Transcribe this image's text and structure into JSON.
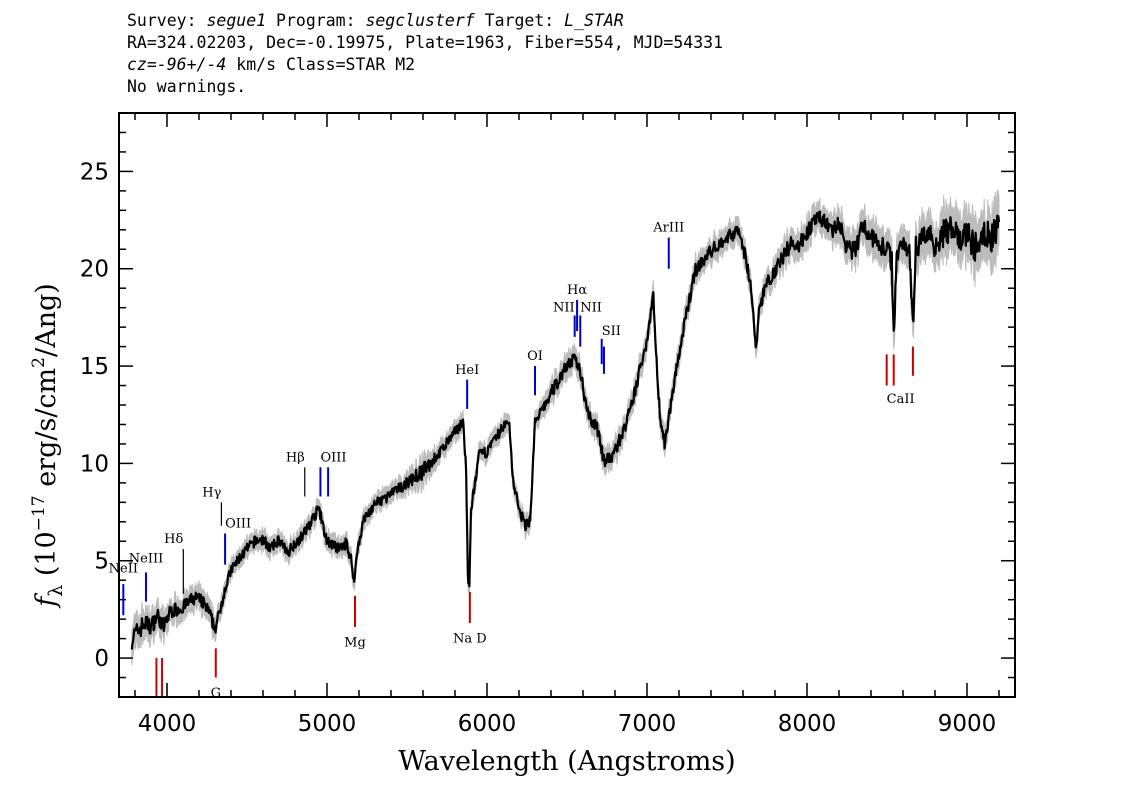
{
  "header": {
    "line1": {
      "survey_label": "Survey: ",
      "survey": "segue1",
      "program_label": " Program: ",
      "program": "segclusterf",
      "target_label": " Target: ",
      "target": "L_STAR"
    },
    "line2": "RA=324.02203, Dec=-0.19975, Plate=1963, Fiber=554, MJD=54331",
    "line3": {
      "cz": "cz=-96+/-4",
      "rest": " km/s Class=STAR M2"
    },
    "line4": "No warnings."
  },
  "chart_data": {
    "type": "line",
    "xlabel": "Wavelength (Angstroms)",
    "ylabel": "f_λ (10^-17 erg/s/cm^2/Ang)",
    "xlim": [
      3700,
      9300
    ],
    "ylim": [
      -2,
      28
    ],
    "x_ticks": [
      4000,
      5000,
      6000,
      7000,
      8000,
      9000
    ],
    "y_ticks": [
      0,
      5,
      10,
      15,
      20,
      25
    ],
    "grid": false,
    "colors": {
      "spectrum": "#000000",
      "error_band": "#bcbcbc",
      "emission_line": "#0000cc",
      "absorption_line": "#cc0000",
      "balmer_line": "#000000"
    },
    "spectrum": {
      "x": [
        3780,
        3820,
        3860,
        3900,
        3940,
        3980,
        4020,
        4060,
        4100,
        4140,
        4180,
        4220,
        4260,
        4300,
        4330,
        4360,
        4400,
        4450,
        4500,
        4550,
        4600,
        4650,
        4700,
        4750,
        4800,
        4850,
        4900,
        4950,
        4990,
        5030,
        5080,
        5120,
        5150,
        5170,
        5190,
        5230,
        5300,
        5400,
        5500,
        5600,
        5700,
        5800,
        5850,
        5870,
        5880,
        5890,
        5900,
        5950,
        6000,
        6050,
        6100,
        6140,
        6160,
        6200,
        6240,
        6270,
        6300,
        6350,
        6400,
        6450,
        6500,
        6550,
        6580,
        6620,
        6660,
        6700,
        6730,
        6780,
        6850,
        6900,
        6950,
        7000,
        7040,
        7060,
        7080,
        7110,
        7130,
        7150,
        7200,
        7250,
        7300,
        7400,
        7500,
        7580,
        7620,
        7650,
        7680,
        7700,
        7750,
        7800,
        7850,
        7900,
        7950,
        8000,
        8050,
        8100,
        8150,
        8200,
        8250,
        8300,
        8350,
        8400,
        8450,
        8500,
        8530,
        8542,
        8560,
        8600,
        8640,
        8662,
        8680,
        8720,
        8760,
        8800,
        8850,
        8900,
        8950,
        9000,
        9050,
        9100,
        9150,
        9200
      ],
      "y": [
        1.0,
        1.4,
        1.8,
        1.6,
        2.2,
        1.6,
        2.4,
        2.5,
        2.6,
        2.9,
        3.1,
        2.9,
        2.4,
        1.5,
        2.4,
        3.5,
        4.5,
        5.1,
        5.6,
        6.0,
        6.1,
        5.6,
        6.1,
        5.4,
        5.9,
        6.3,
        7.0,
        7.7,
        6.2,
        5.8,
        5.6,
        5.9,
        5.1,
        3.9,
        5.6,
        7.1,
        7.9,
        8.4,
        9.0,
        9.6,
        10.5,
        11.6,
        12.2,
        9.6,
        4.1,
        3.6,
        7.6,
        10.4,
        10.6,
        11.2,
        11.9,
        12.1,
        9.3,
        7.6,
        6.8,
        7.1,
        12.1,
        12.8,
        13.6,
        14.3,
        15.1,
        15.3,
        14.9,
        13.0,
        12.1,
        11.6,
        10.1,
        10.3,
        11.6,
        12.8,
        14.6,
        16.4,
        18.7,
        15.1,
        12.6,
        11.0,
        12.1,
        13.1,
        15.6,
        17.8,
        19.9,
        20.9,
        21.6,
        22.0,
        20.4,
        19.1,
        15.8,
        17.9,
        19.3,
        19.9,
        20.6,
        21.3,
        21.2,
        21.9,
        22.4,
        22.6,
        21.9,
        22.3,
        21.1,
        20.9,
        22.3,
        21.6,
        21.3,
        21.0,
        20.4,
        16.6,
        20.6,
        21.4,
        21.1,
        16.9,
        21.1,
        21.6,
        21.9,
        21.2,
        21.8,
        22.1,
        21.4,
        21.9,
        21.0,
        22.1,
        21.5,
        22.4
      ],
      "error": [
        0.8,
        0.7,
        0.7,
        0.6,
        0.6,
        0.6,
        0.5,
        0.5,
        0.5,
        0.5,
        0.5,
        0.5,
        0.5,
        0.5,
        0.4,
        0.4,
        0.4,
        0.4,
        0.4,
        0.4,
        0.4,
        0.4,
        0.4,
        0.4,
        0.4,
        0.4,
        0.4,
        0.4,
        0.4,
        0.4,
        0.4,
        0.4,
        0.4,
        0.4,
        0.4,
        0.4,
        0.4,
        0.4,
        0.4,
        0.6,
        0.4,
        0.4,
        0.4,
        0.4,
        0.4,
        0.4,
        0.4,
        0.4,
        0.4,
        0.4,
        0.4,
        0.4,
        0.4,
        0.4,
        0.4,
        0.4,
        0.4,
        0.4,
        0.5,
        0.5,
        0.5,
        0.5,
        0.5,
        0.5,
        0.5,
        0.5,
        0.5,
        0.5,
        0.5,
        0.5,
        0.5,
        0.5,
        0.5,
        0.5,
        0.5,
        0.5,
        0.5,
        0.5,
        0.5,
        0.5,
        0.5,
        0.5,
        0.5,
        0.5,
        0.5,
        0.5,
        0.5,
        0.5,
        0.5,
        0.5,
        0.6,
        0.6,
        0.6,
        0.6,
        0.6,
        0.6,
        0.6,
        0.7,
        0.7,
        0.7,
        0.7,
        0.7,
        0.8,
        0.8,
        0.8,
        0.8,
        0.8,
        0.8,
        0.8,
        0.8,
        0.9,
        0.9,
        0.9,
        0.9,
        1.0,
        1.0,
        1.0,
        1.0,
        1.1,
        1.1,
        1.1,
        1.2
      ]
    },
    "lines": [
      {
        "label": "NeII",
        "x": 3727,
        "color": "blue",
        "y0": 2.2,
        "y1": 3.8,
        "labelY": 4.4,
        "anchor": "middle"
      },
      {
        "label": "NeIII",
        "x": 3869,
        "color": "blue",
        "y0": 2.9,
        "y1": 4.4,
        "labelY": 4.9,
        "anchor": "middle"
      },
      {
        "label": "Hδ",
        "x": 4102,
        "color": "black",
        "y0": 3.3,
        "y1": 5.6,
        "labelY": 5.9,
        "anchor": "end"
      },
      {
        "label": "Hγ",
        "x": 4340,
        "color": "black",
        "y0": 6.8,
        "y1": 8.0,
        "labelY": 8.3,
        "anchor": "end"
      },
      {
        "label": "OIII",
        "x": 4363,
        "color": "blue",
        "y0": 4.8,
        "y1": 6.4,
        "labelY": 6.7,
        "anchor": "start"
      },
      {
        "label": "Hβ",
        "x": 4861,
        "color": "black",
        "y0": 8.3,
        "y1": 9.8,
        "labelY": 10.1,
        "anchor": "end"
      },
      {
        "label": "OIII",
        "x": 4959,
        "color": "blue",
        "y0": 8.3,
        "y1": 9.8,
        "labelY": 10.1,
        "anchor": "start"
      },
      {
        "label": "",
        "x": 5007,
        "color": "blue",
        "y0": 8.3,
        "y1": 9.8
      },
      {
        "label": "HeI",
        "x": 5876,
        "color": "blue",
        "y0": 12.8,
        "y1": 14.3,
        "labelY": 14.6,
        "anchor": "middle"
      },
      {
        "label": "OI",
        "x": 6300,
        "color": "blue",
        "y0": 13.5,
        "y1": 15.0,
        "labelY": 15.3,
        "anchor": "middle"
      },
      {
        "label": "NII",
        "x": 6548,
        "color": "blue",
        "y0": 16.5,
        "y1": 17.6,
        "labelY": 17.8,
        "anchor": "end"
      },
      {
        "label": "Hα",
        "x": 6563,
        "color": "blue",
        "y0": 16.8,
        "y1": 18.4,
        "labelY": 18.7,
        "anchor": "middle"
      },
      {
        "label": "NII",
        "x": 6583,
        "color": "blue",
        "y0": 16.0,
        "y1": 17.6,
        "labelY": 17.8,
        "anchor": "start"
      },
      {
        "label": "SII",
        "x": 6717,
        "color": "blue",
        "y0": 15.1,
        "y1": 16.4,
        "labelY": 16.6,
        "anchor": "start"
      },
      {
        "label": "",
        "x": 6731,
        "color": "blue",
        "y0": 14.6,
        "y1": 16.0
      },
      {
        "label": "ArIII",
        "x": 7136,
        "color": "blue",
        "y0": 20.0,
        "y1": 21.6,
        "labelY": 21.9,
        "anchor": "middle"
      },
      {
        "label": "Mg",
        "x": 5175,
        "color": "red",
        "y0": 3.2,
        "y1": 1.6,
        "labelY": 0.6,
        "anchor": "middle"
      },
      {
        "label": "Na D",
        "x": 5893,
        "color": "red",
        "y0": 3.4,
        "y1": 1.8,
        "labelY": 0.8,
        "anchor": "middle"
      },
      {
        "label": "G",
        "x": 4305,
        "color": "red",
        "y0": 0.5,
        "y1": -1.0,
        "labelY": -2.0,
        "anchor": "middle"
      },
      {
        "label": "",
        "x": 3934,
        "color": "red",
        "y0": 0.0,
        "y1": -2.0
      },
      {
        "label": "",
        "x": 3969,
        "color": "red",
        "y0": 0.0,
        "y1": -2.0
      },
      {
        "label": "",
        "x": 4000,
        "color": "black",
        "y0": -1.4,
        "y1": -2.0
      },
      {
        "label": "CaII",
        "x": 8498,
        "color": "red",
        "y0": 15.6,
        "y1": 14.0,
        "labelY": 13.1,
        "anchor": "start"
      },
      {
        "label": "",
        "x": 8542,
        "color": "red",
        "y0": 15.6,
        "y1": 14.0
      },
      {
        "label": "",
        "x": 8662,
        "color": "red",
        "y0": 16.0,
        "y1": 14.5
      }
    ]
  }
}
